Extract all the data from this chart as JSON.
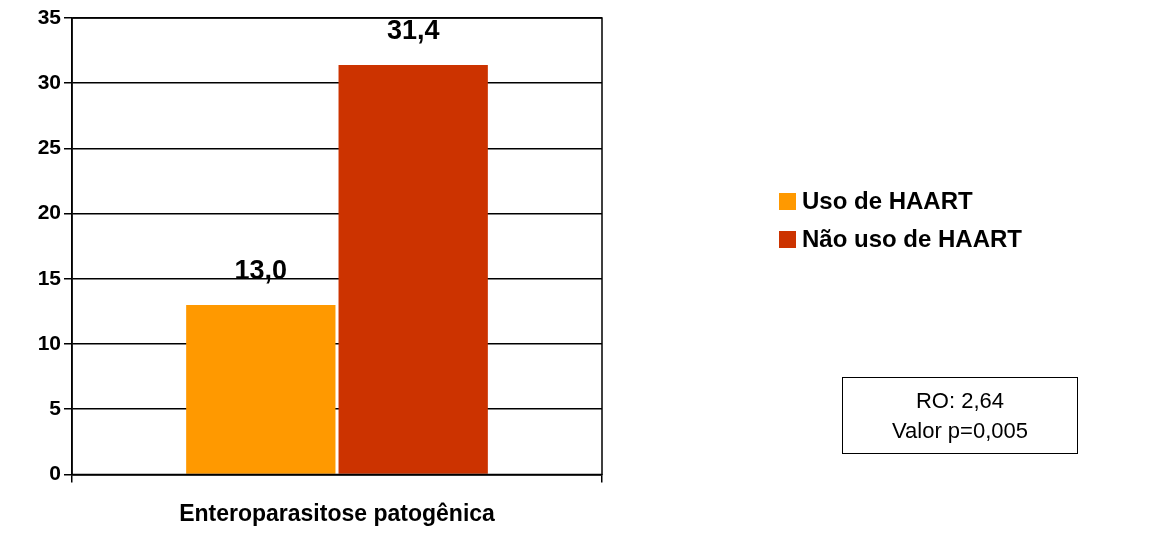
{
  "chart_data": {
    "type": "bar",
    "categories": [
      "Enteroparasitose patogênica"
    ],
    "series": [
      {
        "name": "Uso de HAART",
        "color": "#ff9900",
        "values": [
          13.0
        ],
        "value_labels": [
          "13,0"
        ]
      },
      {
        "name": "Não uso de HAART",
        "color": "#cc3300",
        "values": [
          31.4
        ],
        "value_labels": [
          "31,4"
        ]
      }
    ],
    "ylim": [
      0,
      35
    ],
    "yticks": [
      0,
      5,
      10,
      15,
      20,
      25,
      30,
      35
    ],
    "grid": "y",
    "legend": "right",
    "annotations": [
      "RO: 2,64\nValor p=0,005"
    ]
  }
}
